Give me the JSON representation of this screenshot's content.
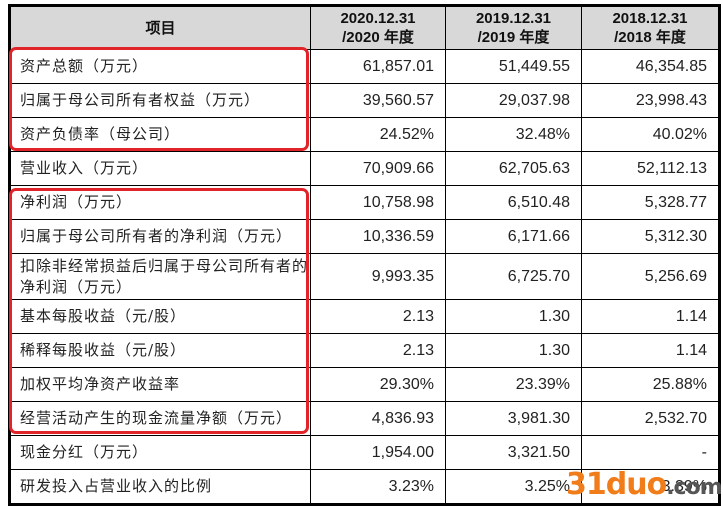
{
  "table": {
    "headers": [
      {
        "line1": "项目",
        "line2": ""
      },
      {
        "line1": "2020.12.31",
        "line2": "/2020 年度"
      },
      {
        "line1": "2019.12.31",
        "line2": "/2019 年度"
      },
      {
        "line1": "2018.12.31",
        "line2": "/2018 年度"
      }
    ],
    "rows": [
      {
        "label": "资产总额（万元）",
        "values": [
          "61,857.01",
          "51,449.55",
          "46,354.85"
        ]
      },
      {
        "label": "归属于母公司所有者权益（万元）",
        "values": [
          "39,560.57",
          "29,037.98",
          "23,998.43"
        ]
      },
      {
        "label": "资产负债率（母公司）",
        "values": [
          "24.52%",
          "32.48%",
          "40.02%"
        ]
      },
      {
        "label": "营业收入（万元）",
        "values": [
          "70,909.66",
          "62,705.63",
          "52,112.13"
        ]
      },
      {
        "label": "净利润（万元）",
        "values": [
          "10,758.98",
          "6,510.48",
          "5,328.77"
        ]
      },
      {
        "label": "归属于母公司所有者的净利润（万元）",
        "values": [
          "10,336.59",
          "6,171.66",
          "5,312.30"
        ]
      },
      {
        "label": "扣除非经常损益后归属于母公司所有者的净利润（万元）",
        "values": [
          "9,993.35",
          "6,725.70",
          "5,256.69"
        ]
      },
      {
        "label": "基本每股收益（元/股）",
        "values": [
          "2.13",
          "1.30",
          "1.14"
        ]
      },
      {
        "label": "稀释每股收益（元/股）",
        "values": [
          "2.13",
          "1.30",
          "1.14"
        ]
      },
      {
        "label": "加权平均净资产收益率",
        "values": [
          "29.30%",
          "23.39%",
          "25.88%"
        ]
      },
      {
        "label": "经营活动产生的现金流量净额（万元）",
        "values": [
          "4,836.93",
          "3,981.30",
          "2,532.70"
        ]
      },
      {
        "label": "现金分红（万元）",
        "values": [
          "1,954.00",
          "3,321.50",
          "-"
        ]
      },
      {
        "label": "研发投入占营业收入的比例",
        "values": [
          "3.23%",
          "3.25%",
          "3.39%"
        ]
      }
    ]
  },
  "highlights": {
    "color": "#e0242a",
    "groups": [
      {
        "rows": [
          0,
          1,
          2
        ]
      },
      {
        "rows": [
          4,
          5,
          6,
          7,
          8,
          9,
          10
        ]
      }
    ]
  },
  "watermark": {
    "main": "31duo",
    "suffix": ".com",
    "color": "#f07c1a"
  }
}
